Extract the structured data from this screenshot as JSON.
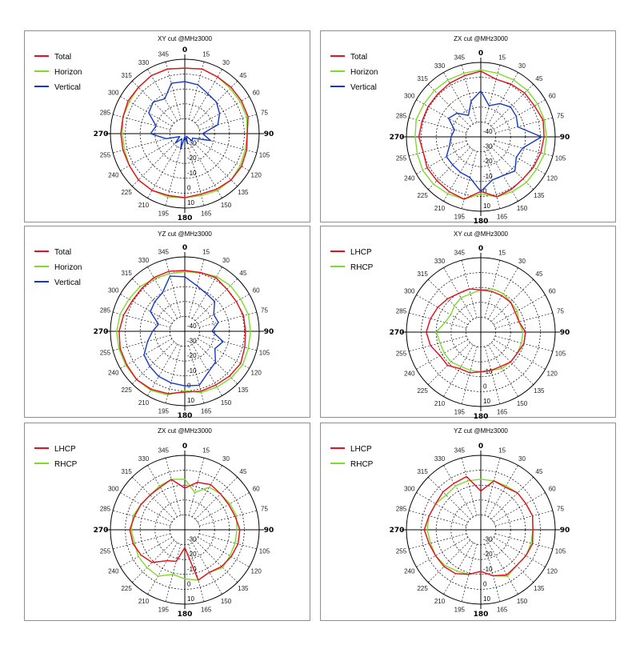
{
  "chart_data": [
    {
      "type": "polar_line",
      "title": "XY cut @MHz3000",
      "angles_deg": [
        0,
        15,
        30,
        45,
        60,
        75,
        90,
        105,
        120,
        135,
        150,
        165,
        180,
        195,
        210,
        225,
        240,
        255,
        270,
        285,
        300,
        315,
        330,
        345
      ],
      "angle_labels": [
        "0",
        "15",
        "30",
        "45",
        "60",
        "75",
        "90",
        "105",
        "120",
        "135",
        "150",
        "165",
        "180",
        "195",
        "210",
        "225",
        "240",
        "255",
        "270",
        "285",
        "300",
        "315",
        "330",
        "345"
      ],
      "radial_labels": [
        "-30",
        "-20",
        "-10",
        "0",
        "10"
      ],
      "rlim": [
        -40,
        10
      ],
      "series": [
        {
          "name": "Total",
          "color": "#e8101e",
          "values": [
            4,
            5,
            4,
            4,
            4,
            4,
            2,
            3,
            4,
            4,
            3,
            2,
            3,
            3,
            4,
            4,
            3,
            3,
            3,
            3,
            4,
            4,
            5,
            5
          ]
        },
        {
          "name": "Horizon",
          "color": "#7ddc2a",
          "values": [
            4,
            5,
            4,
            3,
            3,
            3,
            2,
            2,
            3,
            4,
            4,
            3,
            3,
            4,
            4,
            4,
            3,
            2,
            2,
            3,
            3,
            4,
            5,
            5
          ]
        },
        {
          "name": "Vertical",
          "color": "#1538c8",
          "values": [
            -5,
            -6,
            -9,
            -10,
            -13,
            -17,
            -28,
            -22,
            -34,
            -33,
            -38,
            -33,
            -38,
            -29,
            -36,
            -31,
            -36,
            -27,
            -17,
            -20,
            -12,
            -10,
            -13,
            -5
          ]
        }
      ]
    },
    {
      "type": "polar_line",
      "title": "ZX cut @MHz3000",
      "angles_deg": [
        0,
        15,
        30,
        45,
        60,
        75,
        90,
        105,
        120,
        135,
        150,
        165,
        180,
        195,
        210,
        225,
        240,
        255,
        270,
        285,
        300,
        315,
        330,
        345
      ],
      "angle_labels": [
        "0",
        "15",
        "30",
        "45",
        "60",
        "75",
        "90",
        "105",
        "120",
        "135",
        "150",
        "165",
        "180",
        "195",
        "210",
        "225",
        "240",
        "255",
        "270",
        "285",
        "300",
        "315",
        "330",
        "345"
      ],
      "radial_labels": [
        "-40",
        "-30",
        "-20",
        "-10",
        "0",
        "10"
      ],
      "rlim": [
        -50,
        10
      ],
      "series": [
        {
          "name": "Total",
          "color": "#e8101e",
          "values": [
            3,
            -2,
            -1,
            0,
            0,
            2,
            1,
            0,
            -1,
            -2,
            -1,
            0,
            -6,
            2,
            1,
            0,
            0,
            -2,
            0,
            -1,
            -1,
            -1,
            0,
            1
          ]
        },
        {
          "name": "Horizon",
          "color": "#7ddc2a",
          "values": [
            4,
            3,
            3,
            3,
            3,
            3,
            3,
            3,
            2,
            2,
            1,
            0,
            -4,
            2,
            3,
            4,
            4,
            3,
            3,
            4,
            3,
            3,
            3,
            3
          ]
        },
        {
          "name": "Vertical",
          "color": "#1538c8",
          "values": [
            -13,
            -24,
            -19,
            -16,
            -17,
            -19,
            -1,
            -15,
            -17,
            -11,
            -14,
            -14,
            -6,
            -16,
            -17,
            -18,
            -18,
            -24,
            -26,
            -28,
            -20,
            -23,
            -30,
            -20
          ]
        }
      ]
    },
    {
      "type": "polar_line",
      "title": "YZ cut @MHz3000",
      "angles_deg": [
        0,
        15,
        30,
        45,
        60,
        75,
        90,
        105,
        120,
        135,
        150,
        165,
        180,
        195,
        210,
        225,
        240,
        255,
        270,
        285,
        300,
        315,
        330,
        345
      ],
      "angle_labels": [
        "0",
        "15",
        "30",
        "45",
        "60",
        "75",
        "90",
        "105",
        "120",
        "135",
        "150",
        "165",
        "180",
        "195",
        "210",
        "225",
        "240",
        "255",
        "270",
        "285",
        "300",
        "315",
        "330",
        "345"
      ],
      "radial_labels": [
        "-40",
        "-30",
        "-20",
        "-10",
        "0",
        "10"
      ],
      "rlim": [
        -50,
        10
      ],
      "series": [
        {
          "name": "Total",
          "color": "#e8101e",
          "values": [
            -1,
            -1,
            0,
            -2,
            -2,
            -1,
            -1,
            0,
            2,
            1,
            0,
            0,
            -1,
            2,
            4,
            5,
            4,
            4,
            3,
            1,
            -1,
            -1,
            0,
            0
          ]
        },
        {
          "name": "Horizon",
          "color": "#7ddc2a",
          "values": [
            -2,
            -1,
            1,
            2,
            2,
            3,
            3,
            3,
            4,
            3,
            2,
            1,
            -2,
            3,
            5,
            5,
            5,
            5,
            5,
            4,
            2,
            1,
            -1,
            -2
          ]
        },
        {
          "name": "Vertical",
          "color": "#1538c8",
          "values": [
            -6,
            -12,
            -15,
            -16,
            -23,
            -22,
            -28,
            -18,
            -22,
            -15,
            -12,
            -5,
            -6,
            -7,
            -8,
            -10,
            -12,
            -19,
            -24,
            -28,
            -18,
            -16,
            -14,
            -4
          ]
        }
      ]
    },
    {
      "type": "polar_line",
      "title": "XY cut @MHz3000",
      "angles_deg": [
        0,
        15,
        30,
        45,
        60,
        75,
        90,
        105,
        120,
        135,
        150,
        165,
        180,
        195,
        210,
        225,
        240,
        255,
        270,
        285,
        300,
        315,
        330,
        345
      ],
      "angle_labels": [
        "0",
        "15",
        "30",
        "45",
        "60",
        "75",
        "90",
        "105",
        "120",
        "135",
        "150",
        "165",
        "180",
        "195",
        "210",
        "225",
        "240",
        "255",
        "270",
        "285",
        "300",
        "315",
        "330",
        "345"
      ],
      "radial_labels": [
        "-10",
        "0",
        "10"
      ],
      "rlim": [
        -20,
        10
      ],
      "series": [
        {
          "name": "LHCP",
          "color": "#e8101e",
          "values": [
            -3,
            -3,
            -3,
            -3,
            -4,
            -4,
            -2,
            -2,
            -3,
            -3,
            -4,
            -4,
            -4,
            -3,
            -3,
            -1,
            -1,
            1,
            2,
            1,
            0,
            -1,
            -2,
            -2
          ]
        },
        {
          "name": "RHCP",
          "color": "#7ddc2a",
          "values": [
            -3,
            -2,
            -2,
            -3,
            -3,
            -4,
            -3,
            -3,
            -3,
            -3,
            -3,
            -4,
            -4,
            -4,
            -4,
            -3,
            -3,
            -3,
            -2,
            -5,
            -6,
            -5,
            -4,
            -4
          ]
        }
      ]
    },
    {
      "type": "polar_line",
      "title": "ZX cut @MHz3000",
      "angles_deg": [
        0,
        15,
        30,
        45,
        60,
        75,
        90,
        105,
        120,
        135,
        150,
        165,
        180,
        195,
        210,
        225,
        240,
        255,
        270,
        285,
        300,
        315,
        330,
        345
      ],
      "angle_labels": [
        "0",
        "15",
        "30",
        "45",
        "60",
        "75",
        "90",
        "105",
        "120",
        "135",
        "150",
        "165",
        "180",
        "195",
        "210",
        "225",
        "240",
        "255",
        "270",
        "285",
        "300",
        "315",
        "330",
        "345"
      ],
      "radial_labels": [
        "-30",
        "-20",
        "-10",
        "0",
        "10"
      ],
      "rlim": [
        -40,
        10
      ],
      "series": [
        {
          "name": "LHCP",
          "color": "#e8101e",
          "values": [
            -12,
            -7,
            -5,
            -6,
            -6,
            -5,
            -3,
            -3,
            -4,
            -5,
            -7,
            -5,
            -28,
            -18,
            -16,
            -9,
            -6,
            -4,
            -3,
            -5,
            -6,
            -7,
            -7,
            -5
          ]
        },
        {
          "name": "RHCP",
          "color": "#7ddc2a",
          "values": [
            -6,
            -14,
            -7,
            -6,
            -5,
            -4,
            -5,
            -5,
            -5,
            -4,
            -7,
            -5,
            -7,
            -9,
            -4,
            -4,
            -4,
            -5,
            -4,
            -4,
            -6,
            -7,
            -6,
            -5
          ]
        }
      ]
    },
    {
      "type": "polar_line",
      "title": "YZ cut @MHz3000",
      "angles_deg": [
        0,
        15,
        30,
        45,
        60,
        75,
        90,
        105,
        120,
        135,
        150,
        165,
        180,
        195,
        210,
        225,
        240,
        255,
        270,
        285,
        300,
        315,
        330,
        345
      ],
      "angle_labels": [
        "0",
        "15",
        "30",
        "45",
        "60",
        "75",
        "90",
        "105",
        "120",
        "135",
        "150",
        "165",
        "180",
        "195",
        "210",
        "225",
        "240",
        "255",
        "270",
        "285",
        "300",
        "315",
        "330",
        "345"
      ],
      "radial_labels": [
        "-30",
        "-20",
        "-10",
        "0",
        "10"
      ],
      "rlim": [
        -40,
        10
      ],
      "series": [
        {
          "name": "LHCP",
          "color": "#e8101e",
          "values": [
            -14,
            -6,
            -7,
            -5,
            -5,
            -4,
            -5,
            -4,
            -5,
            -6,
            -5,
            -8,
            -12,
            -9,
            -6,
            -5,
            -5,
            -4,
            -2,
            -4,
            -5,
            -4,
            -4,
            -3
          ]
        },
        {
          "name": "RHCP",
          "color": "#7ddc2a",
          "values": [
            -6,
            -6,
            -6,
            -5,
            -5,
            -4,
            -5,
            -5,
            -5,
            -6,
            -4,
            -8,
            -12,
            -9,
            -8,
            -6,
            -5,
            -5,
            -4,
            -4,
            -5,
            -7,
            -6,
            -6
          ]
        }
      ]
    }
  ]
}
